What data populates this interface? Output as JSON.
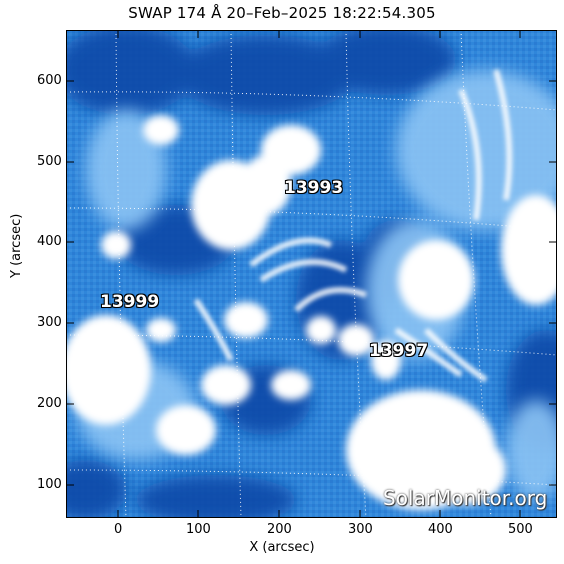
{
  "title": "SWAP 174 Å 20–Feb–2025 18:22:54.305",
  "axes": {
    "xlabel": "X (arcsec)",
    "ylabel": "Y (arcsec)",
    "xticks": [
      "0",
      "100",
      "200",
      "300",
      "400",
      "500"
    ],
    "yticks": [
      "600",
      "500",
      "400",
      "300",
      "200",
      "100"
    ]
  },
  "regions": [
    "13993",
    "13999",
    "13997"
  ],
  "watermark": "SolarMonitor.org",
  "colors": {
    "dark_blue": "#0b3f9e",
    "mid_blue": "#2f86da",
    "light_blue": "#a9d2f7",
    "white": "#ffffff"
  }
}
